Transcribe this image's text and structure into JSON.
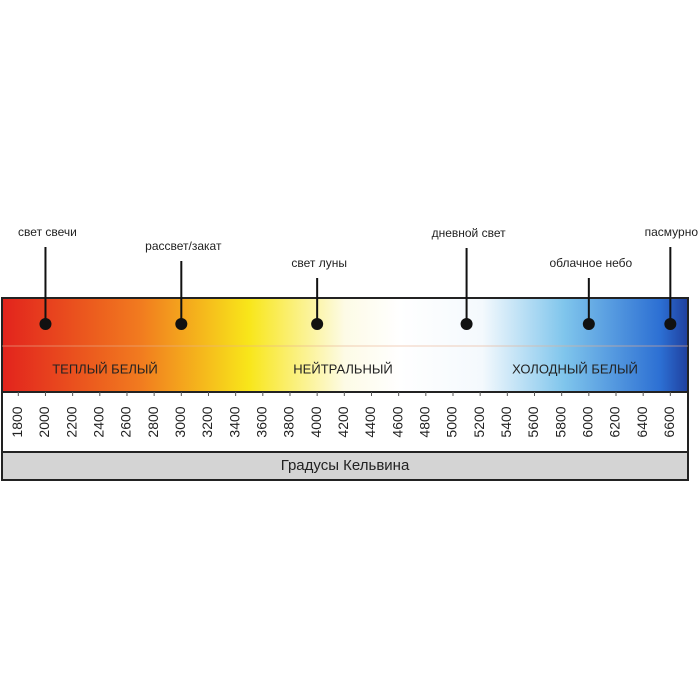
{
  "chart_data": {
    "type": "scale",
    "title": "Градусы Кельвина",
    "xlim": [
      1680,
      6730
    ],
    "xticks": [
      1800,
      2000,
      2200,
      2400,
      2600,
      2800,
      3000,
      3200,
      3400,
      3600,
      3800,
      4000,
      4200,
      4400,
      4600,
      4800,
      5000,
      5200,
      5400,
      5600,
      5800,
      6000,
      6200,
      6400,
      6600
    ],
    "zones": [
      "ТЕПЛЫЙ БЕЛЫЙ",
      "НЕЙТРАЛЬНЫЙ",
      "ХОЛОДНЫЙ БЕЛЫЙ"
    ],
    "markers": [
      {
        "name": "свет свечи",
        "x": 2000
      },
      {
        "name": "рассвет/закат",
        "x": 3000
      },
      {
        "name": "свет луны",
        "x": 4000
      },
      {
        "name": "дневной свет",
        "x": 5100
      },
      {
        "name": "облачное небо",
        "x": 6000
      },
      {
        "name": "пасмурно",
        "x": 6600
      }
    ],
    "marker_color": "#111111"
  }
}
